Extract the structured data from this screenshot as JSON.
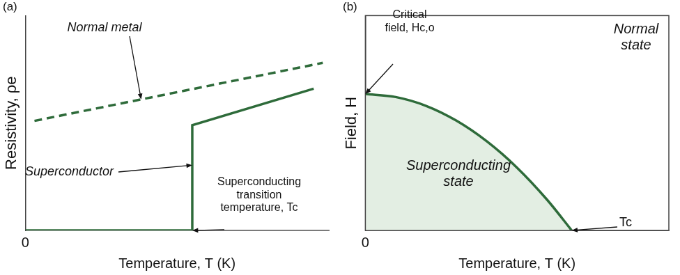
{
  "chart_data": [
    {
      "type": "line",
      "title": "(a)",
      "x_label": "Temperature, T (K)",
      "y_label": "Resistivity, ρe",
      "xlim": [
        0,
        10
      ],
      "ylim": [
        0,
        10
      ],
      "xticks": [
        0
      ],
      "yticks": [],
      "grid": false,
      "tick_labels": "x",
      "series": [
        {
          "name": "Normal metal",
          "color": "#2e6b3a",
          "line_style": "dashed",
          "x": [
            0.3,
            9.8
          ],
          "values": [
            5.1,
            7.8
          ]
        },
        {
          "name": "Superconductor",
          "color": "#2e6b3a",
          "line_style": "solid",
          "x": [
            0,
            5.5,
            5.5,
            9.5
          ],
          "values": [
            0,
            0,
            4.9,
            6.6
          ]
        }
      ],
      "annotations": [
        "Superconducting\ntransition\ntemperature, Tc"
      ]
    },
    {
      "type": "area",
      "title": "(b)",
      "x_label": "Temperature, T (K)",
      "y_label": "Field, H",
      "xlim": [
        0,
        10
      ],
      "ylim": [
        0,
        10
      ],
      "xticks": [
        0
      ],
      "yticks": [],
      "grid": false,
      "tick_labels": "x",
      "color": "#2e6b3a",
      "x": [
        0,
        1,
        2,
        3,
        4,
        5,
        6,
        6.8
      ],
      "values": [
        6.35,
        6.21,
        5.8,
        5.11,
        4.15,
        2.92,
        1.41,
        0
      ],
      "annotations": [
        "Critical\nfield, Hc,o",
        "Tc",
        "Normal\nstate",
        "Superconducting\nstate"
      ]
    }
  ]
}
